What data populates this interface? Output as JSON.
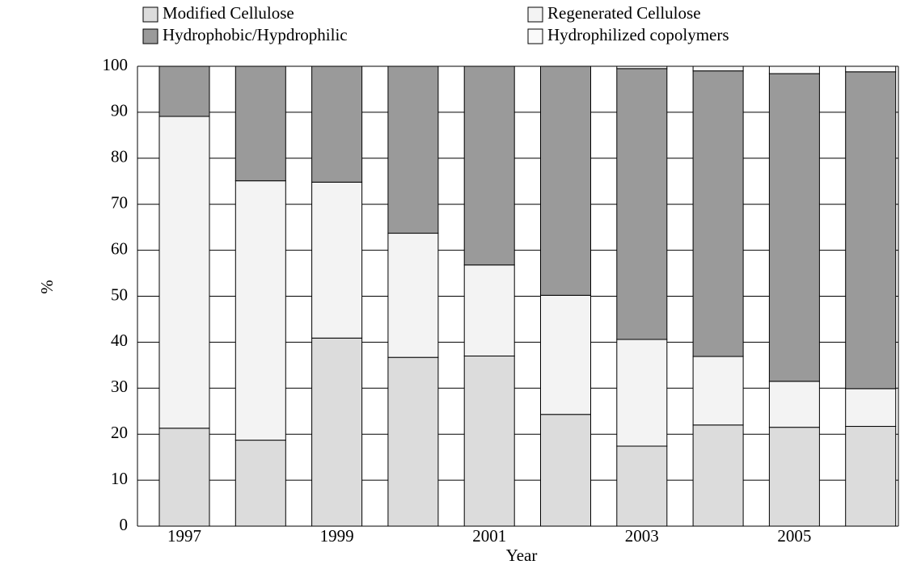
{
  "chart_data": {
    "type": "stacked-bar",
    "x_label": "Year",
    "y_label": "%",
    "categories": [
      "1997",
      null,
      "1999",
      null,
      "2001",
      null,
      "2003",
      null,
      "2005",
      null
    ],
    "series": [
      {
        "name": "Modified Cellulose",
        "color": "#dcdcdc",
        "values": [
          21.3,
          18.7,
          40.9,
          36.7,
          37.0,
          24.3,
          17.4,
          22.0,
          21.5,
          21.7
        ]
      },
      {
        "name": "Regenerated Cellulose",
        "color": "#f3f3f3",
        "values": [
          67.8,
          56.4,
          33.9,
          27.0,
          19.8,
          25.9,
          23.2,
          14.9,
          10.0,
          8.2
        ]
      },
      {
        "name": "Hydrophobic/Hypdrophilic",
        "color": "#9a9a9a",
        "values": [
          10.9,
          24.9,
          25.2,
          36.3,
          43.2,
          49.8,
          58.9,
          62.1,
          66.9,
          68.9
        ]
      },
      {
        "name": "Hydrophilized copolymers",
        "color": "#fafafa",
        "values": [
          0,
          0,
          0,
          0,
          0,
          0,
          0.5,
          1.0,
          1.6,
          1.2
        ]
      }
    ],
    "ylim": [
      0,
      100
    ],
    "yticks": [
      0,
      10,
      20,
      30,
      40,
      50,
      60,
      70,
      80,
      90,
      100
    ],
    "grid": true,
    "legend": "top"
  }
}
